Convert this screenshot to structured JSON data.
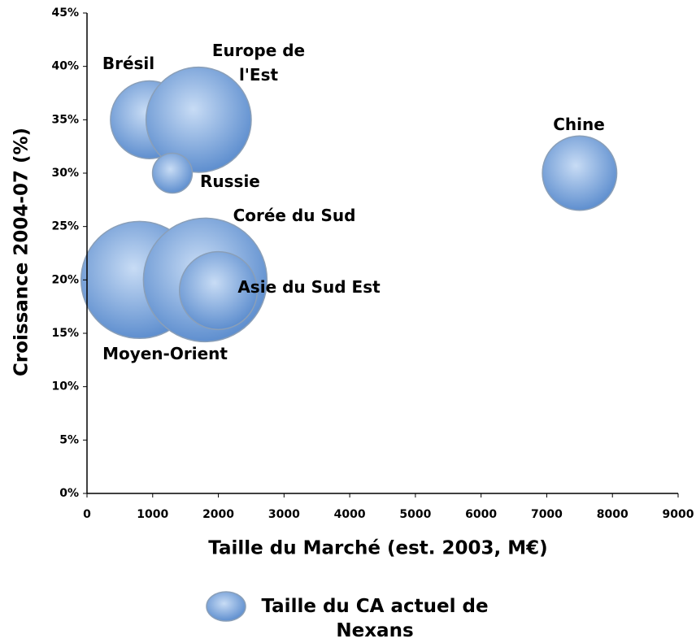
{
  "chart_data": {
    "type": "bubble",
    "xlabel": "Taille du Marché (est. 2003, M€)",
    "ylabel": "Croissance 2004-07 (%)",
    "categories": [
      "Brésil",
      "Europe de l'Est",
      "Russie",
      "Chine",
      "Moyen-Orient",
      "Corée du Sud",
      "Asie du Sud Est"
    ],
    "series": [
      {
        "name": "Taille du CA actuel de Nexans",
        "color": "#6f9fdc",
        "x": [
          950,
          1700,
          1300,
          7500,
          800,
          1800,
          2000
        ],
        "values": [
          35,
          35,
          30,
          30,
          20,
          20,
          19
        ],
        "sizes": [
          23,
          42,
          6,
          21,
          52,
          58,
          23
        ]
      }
    ],
    "xlim": [
      0,
      9000
    ],
    "xticks": [
      0,
      1000,
      2000,
      3000,
      4000,
      5000,
      6000,
      7000,
      8000,
      9000
    ],
    "ylim": [
      0,
      45
    ],
    "yticks": [
      {
        "value": 0,
        "label": "0%"
      },
      {
        "value": 5,
        "label": "5%"
      },
      {
        "value": 10,
        "label": "10%"
      },
      {
        "value": 15,
        "label": "15%"
      },
      {
        "value": 20,
        "label": "20%"
      },
      {
        "value": 25,
        "label": "25%"
      },
      {
        "value": 30,
        "label": "30%"
      },
      {
        "value": 35,
        "label": "35%"
      },
      {
        "value": 40,
        "label": "40%"
      },
      {
        "value": 45,
        "label": "45%"
      }
    ],
    "legend": "bottom"
  }
}
